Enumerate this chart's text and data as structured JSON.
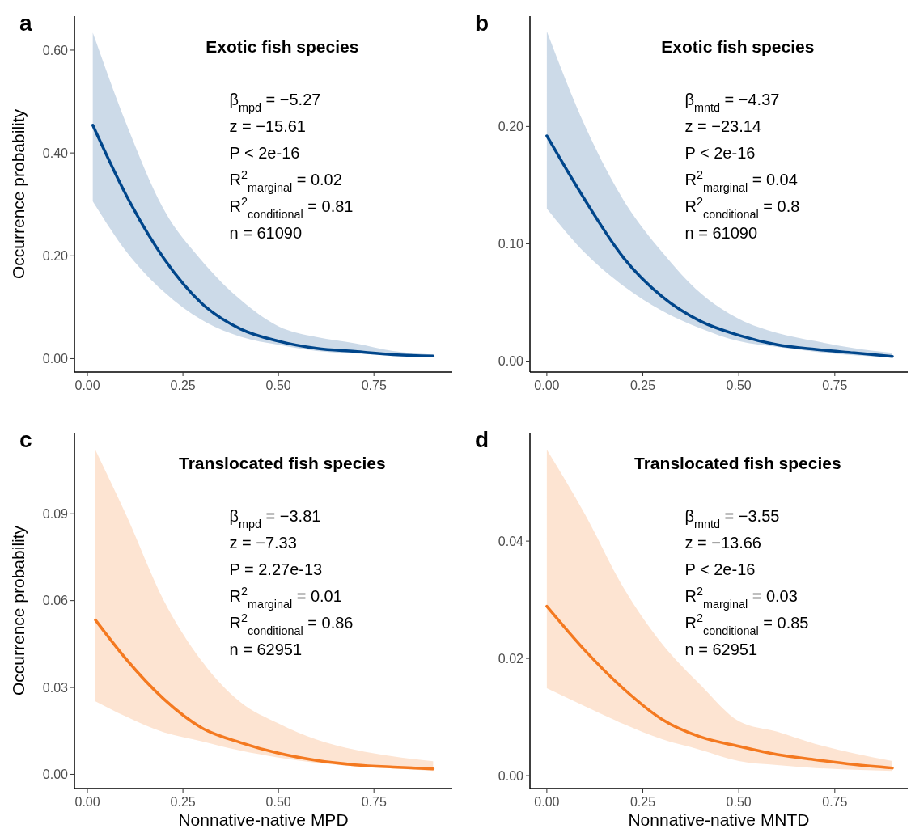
{
  "chart_data": [
    {
      "type": "line",
      "title": "Exotic fish species",
      "ylabel": "Occurrence probability",
      "annotations": [
        "a",
        "β$_{mpd}$ = −5.27",
        "z = −15.61",
        "P < 2e-16",
        "R$^{2}$$_{marginal}$ = 0.02",
        "R$^{2}$$_{conditional}$ = 0.81",
        "n = 61090"
      ],
      "xlim": [
        -0.034,
        0.955
      ],
      "ylim": [
        -0.026,
        0.666
      ],
      "xticks": [
        {
          "value": 0,
          "label": "0.00"
        },
        {
          "value": 0.25,
          "label": "0.25"
        },
        {
          "value": 0.5,
          "label": "0.50"
        },
        {
          "value": 0.75,
          "label": "0.75"
        }
      ],
      "yticks": [
        {
          "value": 0,
          "label": "0.00"
        },
        {
          "value": 0.2,
          "label": "0.20"
        },
        {
          "value": 0.4,
          "label": "0.40"
        },
        {
          "value": 0.6,
          "label": "0.60"
        }
      ],
      "series": [
        {
          "color": "#00468b",
          "x": [
            0.014,
            0.1,
            0.2,
            0.3,
            0.4,
            0.5,
            0.6,
            0.7,
            0.8,
            0.905
          ],
          "values": [
            0.454,
            0.32,
            0.195,
            0.107,
            0.058,
            0.034,
            0.02,
            0.014,
            0.008,
            0.005
          ],
          "lower": [
            0.306,
            0.21,
            0.13,
            0.075,
            0.043,
            0.027,
            0.015,
            0.01,
            0.006,
            0.004
          ],
          "upper": [
            0.634,
            0.46,
            0.29,
            0.19,
            0.115,
            0.063,
            0.042,
            0.03,
            0.015,
            0.008
          ]
        }
      ]
    },
    {
      "type": "line",
      "title": "Exotic fish species",
      "annotations": [
        "b",
        "β$_{mntd}$ = −4.37",
        "z = −23.14",
        "P < 2e-16",
        "R$^{2}$$_{marginal}$ = 0.04",
        "R$^{2}$$_{conditional}$ = 0.8",
        "n = 61090"
      ],
      "xlim": [
        -0.044,
        0.94
      ],
      "ylim": [
        -0.0093,
        0.294
      ],
      "xticks": [
        {
          "value": 0,
          "label": "0.00"
        },
        {
          "value": 0.25,
          "label": "0.25"
        },
        {
          "value": 0.5,
          "label": "0.50"
        },
        {
          "value": 0.75,
          "label": "0.75"
        }
      ],
      "yticks": [
        {
          "value": 0,
          "label": "0.00"
        },
        {
          "value": 0.1,
          "label": "0.10"
        },
        {
          "value": 0.2,
          "label": "0.20"
        }
      ],
      "series": [
        {
          "color": "#00468b",
          "x": [
            0,
            0.1,
            0.2,
            0.3,
            0.4,
            0.5,
            0.6,
            0.7,
            0.8,
            0.9
          ],
          "values": [
            0.192,
            0.137,
            0.088,
            0.055,
            0.034,
            0.022,
            0.014,
            0.01,
            0.007,
            0.004
          ],
          "lower": [
            0.13,
            0.092,
            0.064,
            0.043,
            0.028,
            0.017,
            0.012,
            0.008,
            0.005,
            0.003
          ],
          "upper": [
            0.281,
            0.2,
            0.137,
            0.093,
            0.058,
            0.036,
            0.024,
            0.017,
            0.011,
            0.007
          ]
        }
      ]
    },
    {
      "type": "line",
      "title": "Translocated fish species",
      "xlabel": "Nonnative-native MPD",
      "ylabel": "Occurrence probability",
      "annotations": [
        "c",
        "β$_{mpd}$ = −3.81",
        "z = −7.33",
        "P = 2.27e-13",
        "R$^{2}$$_{marginal}$ = 0.01",
        "R$^{2}$$_{conditional}$ = 0.86",
        "n = 62951"
      ],
      "xlim": [
        -0.034,
        0.955
      ],
      "ylim": [
        -0.0049,
        0.118
      ],
      "xticks": [
        {
          "value": 0,
          "label": "0.00"
        },
        {
          "value": 0.25,
          "label": "0.25"
        },
        {
          "value": 0.5,
          "label": "0.50"
        },
        {
          "value": 0.75,
          "label": "0.75"
        }
      ],
      "yticks": [
        {
          "value": 0,
          "label": "0.00"
        },
        {
          "value": 0.03,
          "label": "0.03"
        },
        {
          "value": 0.06,
          "label": "0.06"
        },
        {
          "value": 0.09,
          "label": "0.09"
        }
      ],
      "series": [
        {
          "color": "#f47920",
          "x": [
            0.021,
            0.1,
            0.2,
            0.3,
            0.4,
            0.5,
            0.6,
            0.7,
            0.8,
            0.905
          ],
          "values": [
            0.0533,
            0.04,
            0.026,
            0.016,
            0.011,
            0.0073,
            0.0048,
            0.0033,
            0.0025,
            0.0019
          ],
          "lower": [
            0.0252,
            0.02,
            0.0145,
            0.0114,
            0.0082,
            0.0058,
            0.004,
            0.0028,
            0.002,
            0.0012
          ],
          "upper": [
            0.112,
            0.09,
            0.06,
            0.039,
            0.025,
            0.0176,
            0.012,
            0.0085,
            0.0062,
            0.0045
          ]
        }
      ]
    },
    {
      "type": "line",
      "title": "Translocated fish species",
      "xlabel": "Nonnative-native MNTD",
      "annotations": [
        "d",
        "β$_{mntd}$ = −3.55",
        "z = −13.66",
        "P < 2e-16",
        "R$^{2}$$_{marginal}$ = 0.03",
        "R$^{2}$$_{conditional}$ = 0.85",
        "n = 62951"
      ],
      "xlim": [
        -0.044,
        0.94
      ],
      "ylim": [
        -0.0022,
        0.0585
      ],
      "xticks": [
        {
          "value": 0,
          "label": "0.00"
        },
        {
          "value": 0.25,
          "label": "0.25"
        },
        {
          "value": 0.5,
          "label": "0.50"
        },
        {
          "value": 0.75,
          "label": "0.75"
        }
      ],
      "yticks": [
        {
          "value": 0,
          "label": "0.00"
        },
        {
          "value": 0.02,
          "label": "0.02"
        },
        {
          "value": 0.04,
          "label": "0.04"
        }
      ],
      "series": [
        {
          "color": "#f47920",
          "x": [
            0,
            0.1,
            0.2,
            0.3,
            0.4,
            0.5,
            0.6,
            0.7,
            0.8,
            0.9
          ],
          "values": [
            0.0289,
            0.0213,
            0.0148,
            0.0096,
            0.0066,
            0.005,
            0.0036,
            0.0027,
            0.0019,
            0.0013
          ],
          "lower": [
            0.0149,
            0.0118,
            0.0088,
            0.0062,
            0.0044,
            0.0025,
            0.0018,
            0.0013,
            0.001,
            0.0008
          ],
          "upper": [
            0.0556,
            0.0445,
            0.032,
            0.0225,
            0.0155,
            0.0093,
            0.0075,
            0.0054,
            0.0038,
            0.0025
          ]
        }
      ]
    }
  ]
}
